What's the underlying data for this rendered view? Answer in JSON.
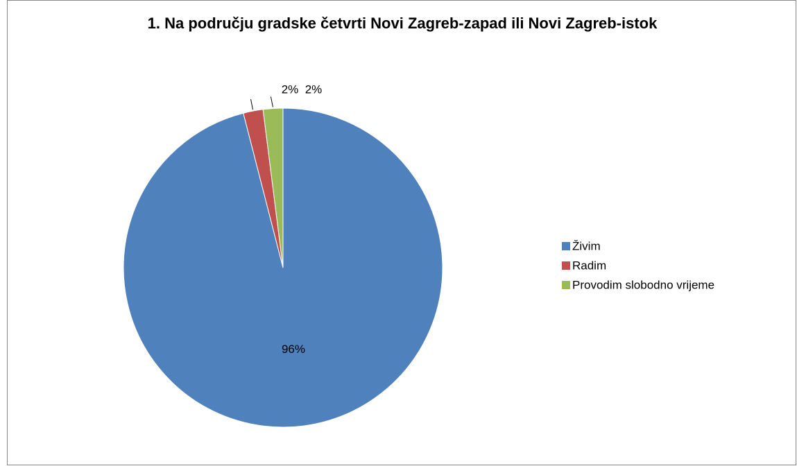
{
  "chart_data": {
    "type": "pie",
    "title": "1. Na području gradske četvrti Novi Zagreb-zapad ili Novi Zagreb-istok",
    "categories": [
      "Živim",
      "Radim",
      "Provodim slobodno vrijeme"
    ],
    "values": [
      96,
      2,
      2
    ],
    "value_labels": [
      "96%",
      "2%",
      "2%"
    ],
    "colors": [
      "#4f81bd",
      "#c0504d",
      "#9bbb59"
    ],
    "legend": "right"
  }
}
